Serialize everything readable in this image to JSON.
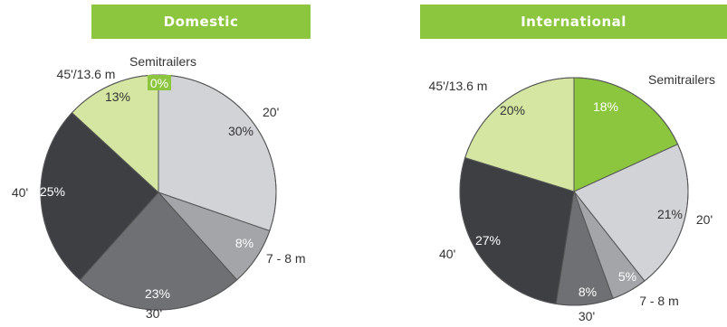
{
  "chart_data": [
    {
      "type": "pie",
      "title": "Domestic",
      "slices": [
        {
          "label": "Semitrailers",
          "value": 0,
          "value_label": "0%",
          "color": "#8cc63f"
        },
        {
          "label": "20'",
          "value": 30,
          "value_label": "30%",
          "color": "#d2d3d6"
        },
        {
          "label": "7 - 8 m",
          "value": 8,
          "value_label": "8%",
          "color": "#a3a5a8"
        },
        {
          "label": "30'",
          "value": 23,
          "value_label": "23%",
          "color": "#6e7073"
        },
        {
          "label": "40'",
          "value": 25,
          "value_label": "25%",
          "color": "#3d3f43"
        },
        {
          "label": "45'/13.6 m",
          "value": 13,
          "value_label": "13%",
          "color": "#d4e6a1"
        }
      ]
    },
    {
      "type": "pie",
      "title": "International",
      "slices": [
        {
          "label": "Semitrailers",
          "value": 18,
          "value_label": "18%",
          "color": "#8cc63f"
        },
        {
          "label": "20'",
          "value": 21,
          "value_label": "21%",
          "color": "#d2d3d6"
        },
        {
          "label": "7 - 8 m",
          "value": 5,
          "value_label": "5%",
          "color": "#a3a5a8"
        },
        {
          "label": "30'",
          "value": 8,
          "value_label": "8%",
          "color": "#6e7073"
        },
        {
          "label": "40'",
          "value": 27,
          "value_label": "27%",
          "color": "#3d3f43"
        },
        {
          "label": "45'/13.6 m",
          "value": 20,
          "value_label": "20%",
          "color": "#d4e6a1"
        }
      ]
    }
  ]
}
